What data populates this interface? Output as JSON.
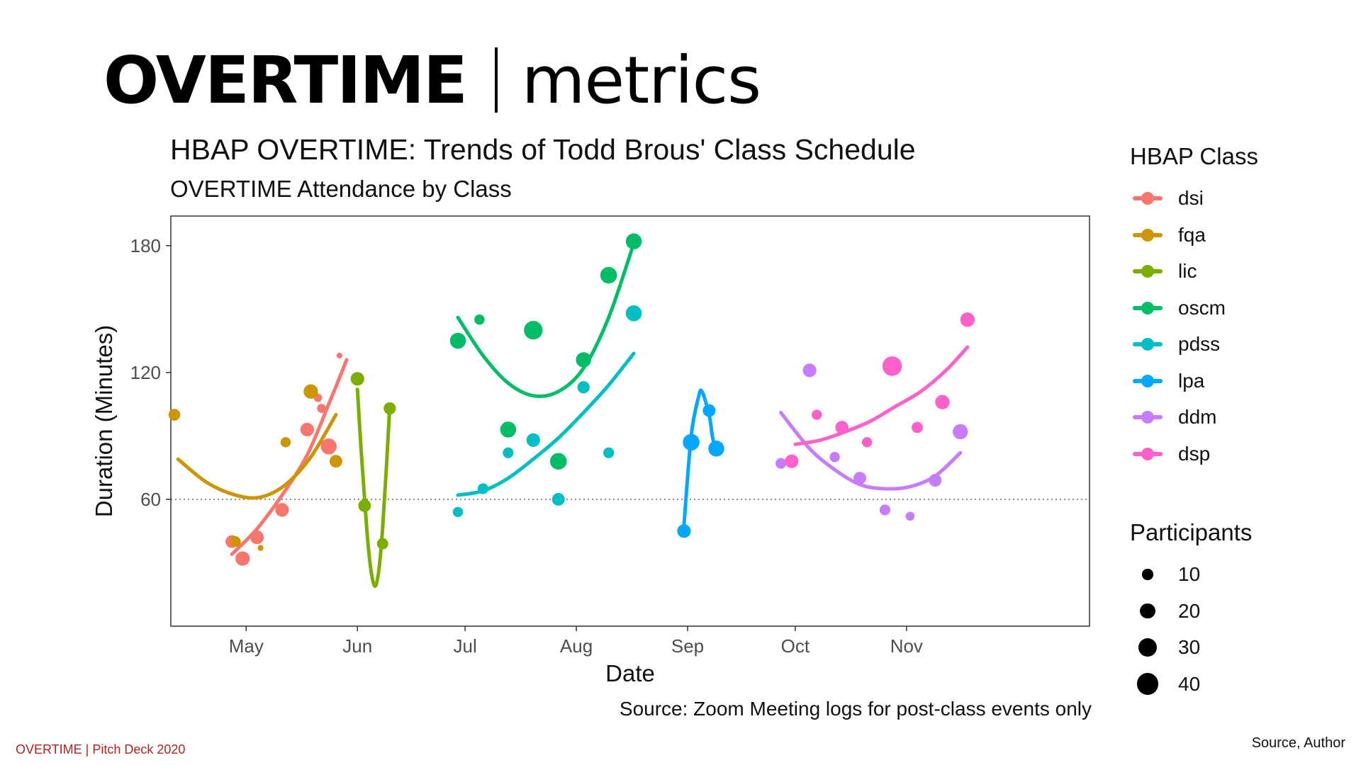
{
  "slide": {
    "title_bold": "OVERTIME",
    "title_light": "metrics",
    "footer_left": "OVERTIME |  Pitch Deck 2020",
    "footer_right": "Source, Author"
  },
  "chart_data": {
    "type": "scatter",
    "title": "HBAP OVERTIME: Trends of Todd Brous' Class Schedule",
    "subtitle": "OVERTIME Attendance by Class",
    "xlabel": "Date",
    "ylabel": "Duration (Minutes)",
    "caption": "Source: Zoom Meeting logs for post-class events only",
    "x_ticks": [
      "2020-05-01",
      "2020-06-01",
      "2020-07-01",
      "2020-08-01",
      "2020-09-01",
      "2020-10-01",
      "2020-11-01"
    ],
    "x_tick_labels": [
      "May",
      "Jun",
      "Jul",
      "Aug",
      "Sep",
      "Oct",
      "Nov"
    ],
    "xlim": [
      "2020-04-10",
      "2020-12-22"
    ],
    "y_ticks": [
      60,
      120,
      180
    ],
    "ylim": [
      0,
      194
    ],
    "reference_line": 60,
    "grid": false,
    "legend_position": "right",
    "color_legend_title": "HBAP Class",
    "size_legend_title": "Participants",
    "size_legend": [
      10,
      20,
      30,
      40
    ],
    "series": [
      {
        "name": "dsi",
        "color": "#F8766D",
        "points": [
          [
            "2020-04-27",
            40,
            14
          ],
          [
            "2020-04-30",
            32,
            18
          ],
          [
            "2020-05-04",
            42,
            16
          ],
          [
            "2020-05-11",
            55,
            16
          ],
          [
            "2020-05-18",
            93,
            16
          ],
          [
            "2020-05-21",
            108,
            6
          ],
          [
            "2020-05-22",
            103,
            7
          ],
          [
            "2020-05-24",
            85,
            22
          ],
          [
            "2020-05-27",
            128,
            3
          ]
        ],
        "trend": [
          [
            "2020-04-27",
            34
          ],
          [
            "2020-05-04",
            46
          ],
          [
            "2020-05-11",
            62
          ],
          [
            "2020-05-18",
            81
          ],
          [
            "2020-05-24",
            105
          ],
          [
            "2020-05-29",
            126
          ]
        ]
      },
      {
        "name": "fqa",
        "color": "#CD9600",
        "points": [
          [
            "2020-04-11",
            100,
            12
          ],
          [
            "2020-04-28",
            40,
            10
          ],
          [
            "2020-05-05",
            37,
            3
          ],
          [
            "2020-05-12",
            87,
            9
          ],
          [
            "2020-05-19",
            111,
            18
          ],
          [
            "2020-05-26",
            78,
            14
          ]
        ],
        "trend": [
          [
            "2020-04-12",
            79
          ],
          [
            "2020-04-20",
            68
          ],
          [
            "2020-04-28",
            62
          ],
          [
            "2020-05-05",
            61
          ],
          [
            "2020-05-12",
            67
          ],
          [
            "2020-05-19",
            80
          ],
          [
            "2020-05-26",
            100
          ]
        ]
      },
      {
        "name": "lic",
        "color": "#7CAE00",
        "points": [
          [
            "2020-06-01",
            117,
            16
          ],
          [
            "2020-06-03",
            57,
            14
          ],
          [
            "2020-06-08",
            39,
            11
          ],
          [
            "2020-06-10",
            103,
            13
          ]
        ],
        "trend": [
          [
            "2020-06-01",
            112
          ],
          [
            "2020-06-02",
            84
          ],
          [
            "2020-06-03",
            60
          ],
          [
            "2020-06-04",
            38
          ],
          [
            "2020-06-05",
            24
          ],
          [
            "2020-06-06",
            19
          ],
          [
            "2020-06-07",
            27
          ],
          [
            "2020-06-08",
            46
          ],
          [
            "2020-06-09",
            73
          ],
          [
            "2020-06-10",
            104
          ]
        ]
      },
      {
        "name": "oscm",
        "color": "#00BE67",
        "points": [
          [
            "2020-06-29",
            135,
            22
          ],
          [
            "2020-07-05",
            145,
            9
          ],
          [
            "2020-07-13",
            93,
            22
          ],
          [
            "2020-07-20",
            140,
            30
          ],
          [
            "2020-07-27",
            78,
            24
          ],
          [
            "2020-08-03",
            126,
            20
          ],
          [
            "2020-08-10",
            166,
            24
          ],
          [
            "2020-08-17",
            182,
            22
          ]
        ],
        "trend": [
          [
            "2020-06-29",
            146
          ],
          [
            "2020-07-06",
            128
          ],
          [
            "2020-07-13",
            115
          ],
          [
            "2020-07-20",
            109
          ],
          [
            "2020-07-27",
            111
          ],
          [
            "2020-08-03",
            122
          ],
          [
            "2020-08-10",
            146
          ],
          [
            "2020-08-17",
            181
          ]
        ]
      },
      {
        "name": "pdss",
        "color": "#00BFC4",
        "points": [
          [
            "2020-06-29",
            54,
            9
          ],
          [
            "2020-07-06",
            65,
            10
          ],
          [
            "2020-07-13",
            82,
            10
          ],
          [
            "2020-07-20",
            88,
            16
          ],
          [
            "2020-07-27",
            60,
            14
          ],
          [
            "2020-08-03",
            113,
            13
          ],
          [
            "2020-08-10",
            82,
            10
          ],
          [
            "2020-08-17",
            148,
            22
          ]
        ],
        "trend": [
          [
            "2020-06-29",
            62
          ],
          [
            "2020-07-06",
            64
          ],
          [
            "2020-07-13",
            70
          ],
          [
            "2020-07-20",
            79
          ],
          [
            "2020-07-27",
            89
          ],
          [
            "2020-08-03",
            101
          ],
          [
            "2020-08-10",
            114
          ],
          [
            "2020-08-17",
            129
          ]
        ]
      },
      {
        "name": "lpa",
        "color": "#00A9FF",
        "points": [
          [
            "2020-08-31",
            45,
            16
          ],
          [
            "2020-09-02",
            87,
            24
          ],
          [
            "2020-09-07",
            102,
            14
          ],
          [
            "2020-09-09",
            84,
            22
          ]
        ],
        "trend": [
          [
            "2020-08-31",
            48
          ],
          [
            "2020-09-02",
            90
          ],
          [
            "2020-09-04",
            108
          ],
          [
            "2020-09-05",
            111
          ],
          [
            "2020-09-07",
            100
          ],
          [
            "2020-09-08",
            89
          ],
          [
            "2020-09-09",
            83
          ]
        ]
      },
      {
        "name": "ddm",
        "color": "#C77CFF",
        "points": [
          [
            "2020-09-27",
            77,
            10
          ],
          [
            "2020-10-05",
            121,
            16
          ],
          [
            "2020-10-12",
            80,
            9
          ],
          [
            "2020-10-19",
            70,
            14
          ],
          [
            "2020-10-26",
            55,
            10
          ],
          [
            "2020-11-02",
            52,
            7
          ],
          [
            "2020-11-09",
            69,
            14
          ],
          [
            "2020-11-16",
            92,
            20
          ]
        ],
        "trend": [
          [
            "2020-09-27",
            101
          ],
          [
            "2020-10-05",
            84
          ],
          [
            "2020-10-12",
            74
          ],
          [
            "2020-10-19",
            67
          ],
          [
            "2020-10-26",
            65
          ],
          [
            "2020-11-02",
            66
          ],
          [
            "2020-11-09",
            71
          ],
          [
            "2020-11-16",
            82
          ]
        ]
      },
      {
        "name": "dsp",
        "color": "#FF61CC",
        "points": [
          [
            "2020-09-30",
            78,
            16
          ],
          [
            "2020-10-07",
            100,
            9
          ],
          [
            "2020-10-14",
            94,
            15
          ],
          [
            "2020-10-21",
            87,
            9
          ],
          [
            "2020-10-28",
            123,
            33
          ],
          [
            "2020-11-04",
            94,
            11
          ],
          [
            "2020-11-11",
            106,
            18
          ],
          [
            "2020-11-18",
            145,
            18
          ]
        ],
        "trend": [
          [
            "2020-10-01",
            86
          ],
          [
            "2020-10-08",
            88
          ],
          [
            "2020-10-15",
            92
          ],
          [
            "2020-10-22",
            97
          ],
          [
            "2020-10-29",
            104
          ],
          [
            "2020-11-05",
            111
          ],
          [
            "2020-11-12",
            121
          ],
          [
            "2020-11-18",
            132
          ]
        ]
      }
    ]
  }
}
